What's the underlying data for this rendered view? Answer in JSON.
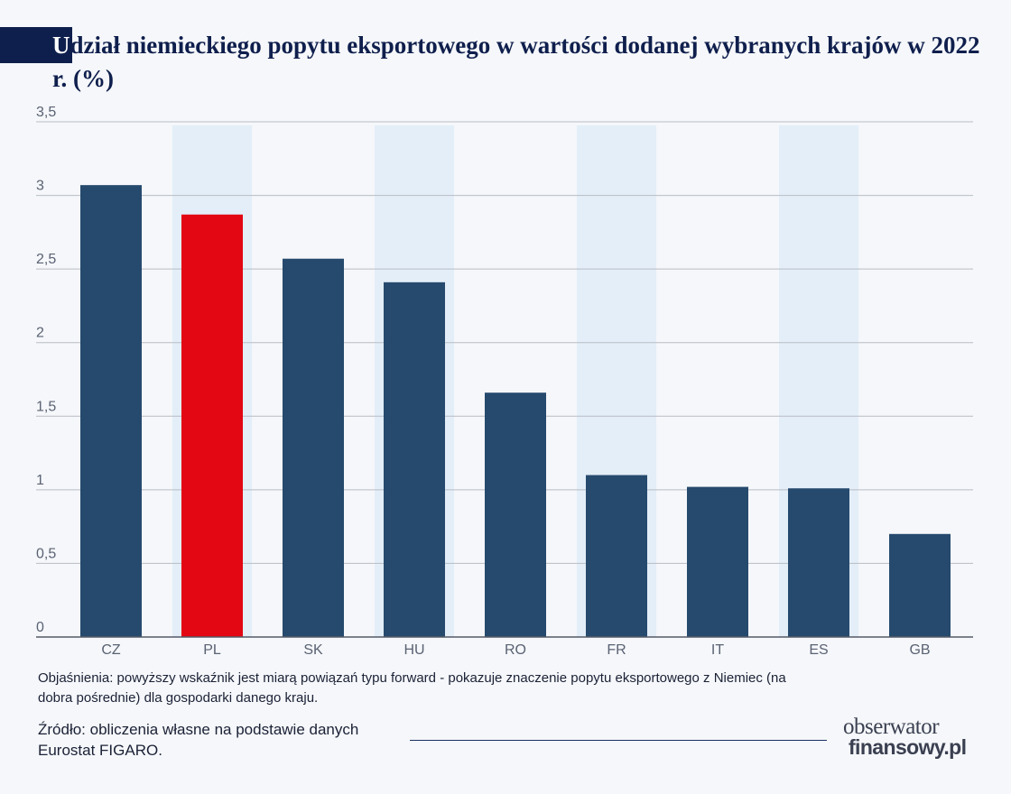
{
  "header": {
    "title_first_letter": "U",
    "title_rest": "dział niemieckiego popytu eksportowego w wartości dodanej wybranych krajów w 2022 r. (%)"
  },
  "colors": {
    "bar": "#264a6e",
    "highlight": "#e30613",
    "band": "#e3eef8",
    "grid": "#b9bcc4",
    "accent": "#0f1f4d"
  },
  "chart_data": {
    "type": "bar",
    "title": "Udział niemieckiego popytu eksportowego w wartości dodanej wybranych krajów w 2022 r. (%)",
    "categories": [
      "CZ",
      "PL",
      "SK",
      "HU",
      "RO",
      "FR",
      "IT",
      "ES",
      "GB"
    ],
    "values": [
      3.07,
      2.87,
      2.57,
      2.41,
      1.66,
      1.1,
      1.02,
      1.01,
      0.7
    ],
    "highlight_category": "PL",
    "shaded_categories": [
      "PL",
      "HU",
      "FR",
      "ES"
    ],
    "ylim": [
      0,
      3.5
    ],
    "yticks": [
      0,
      0.5,
      1,
      1.5,
      2,
      2.5,
      3,
      3.5
    ],
    "ytick_labels": [
      "0",
      "0,5",
      "1",
      "1,5",
      "2",
      "2,5",
      "3",
      "3,5"
    ],
    "xlabel": "",
    "ylabel": "",
    "grid": true,
    "legend": "none"
  },
  "footer": {
    "note": "Objaśnienia: powyższy wskaźnik jest miarą powiązań typu forward - pokazuje znaczenie popytu eksportowego z Niemiec (na dobra pośrednie) dla gospodarki danego kraju.",
    "source": "Źródło: obliczenia własne na podstawie danych Eurostat FIGARO.",
    "logo_line1": "obserwator",
    "logo_line2": "finansowy.pl"
  }
}
